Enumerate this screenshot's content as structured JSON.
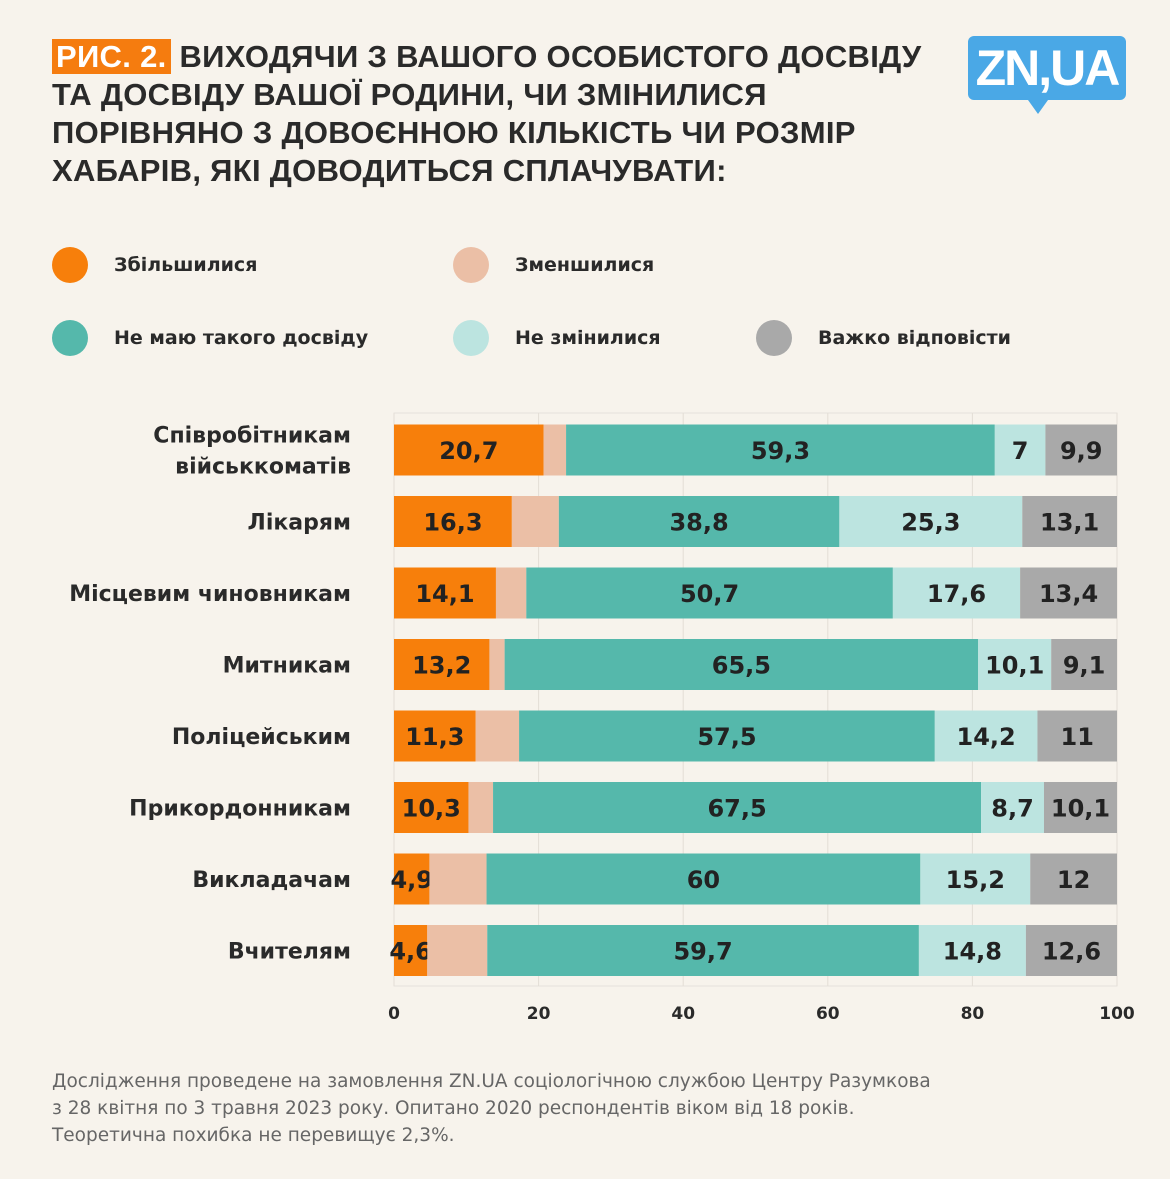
{
  "header": {
    "figure_label": "РИС. 2.",
    "title": "ВИХОДЯЧИ З ВАШОГО ОСОБИСТОГО ДОСВІДУ ТА ДОСВІДУ ВАШОЇ РОДИНИ, ЧИ ЗМІНИЛИСЯ ПОРІВНЯНО З ДОВОЄННОЮ  КІЛЬКІСТЬ ЧИ РОЗМІР ХАБАРІВ, ЯКІ ДОВОДИТЬСЯ СПЛАЧУВАТИ:",
    "logo": "ZN,UA"
  },
  "chart_data": {
    "type": "bar",
    "orientation": "horizontal",
    "stacked": true,
    "title": "ВИХОДЯЧИ З ВАШОГО ОСОБИСТОГО ДОСВІДУ ТА ДОСВІДУ ВАШОЇ РОДИНИ, ЧИ ЗМІНИЛИСЯ ПОРІВНЯНО З ДОВОЄННОЮ  КІЛЬКІСТЬ ЧИ РОЗМІР ХАБАРІВ, ЯКІ ДОВОДИТЬСЯ СПЛАЧУВАТИ:",
    "categories": [
      "Співробітникам військкоматів",
      "Лікарям",
      "Місцевим чиновникам",
      "Митникам",
      "Поліцейським",
      "Прикордонникам",
      "Викладачам",
      "Вчителям"
    ],
    "series": [
      {
        "name": "Збільшилися",
        "color": "#f77f0b",
        "labeled": true,
        "values": [
          20.7,
          16.3,
          14.1,
          13.2,
          11.3,
          10.3,
          4.9,
          4.6
        ]
      },
      {
        "name": "Зменшилися",
        "color": "#ebbfa6",
        "labeled": false,
        "values": [
          3.1,
          6.5,
          4.2,
          2.1,
          6.0,
          3.4,
          7.9,
          8.3
        ]
      },
      {
        "name": "Не маю такого досвіду",
        "color": "#55b8ab",
        "labeled": true,
        "values": [
          59.3,
          38.8,
          50.7,
          65.5,
          57.5,
          67.5,
          60,
          59.7
        ]
      },
      {
        "name": "Не змінилися",
        "color": "#bce4e0",
        "labeled": true,
        "values": [
          7,
          25.3,
          17.6,
          10.1,
          14.2,
          8.7,
          15.2,
          14.8
        ]
      },
      {
        "name": "Важко відповісти",
        "color": "#a9a9a9",
        "labeled": true,
        "values": [
          9.9,
          13.1,
          13.4,
          9.1,
          11,
          10.1,
          12,
          12.6
        ]
      }
    ],
    "xlim": [
      0,
      100
    ],
    "xticks": [
      0,
      20,
      40,
      60,
      80,
      100
    ],
    "grid": true,
    "legend_position": "top",
    "decimal_separator": ","
  },
  "footer": {
    "lines": [
      "Дослідження проведене на замовлення ZN.UA соціологічною службою Центру Разумкова",
      "з 28 квітня по 3 травня 2023 року. Опитано 2020 респондентів віком від 18 років.",
      "Теоретична похибка не перевищує 2,3%."
    ]
  }
}
